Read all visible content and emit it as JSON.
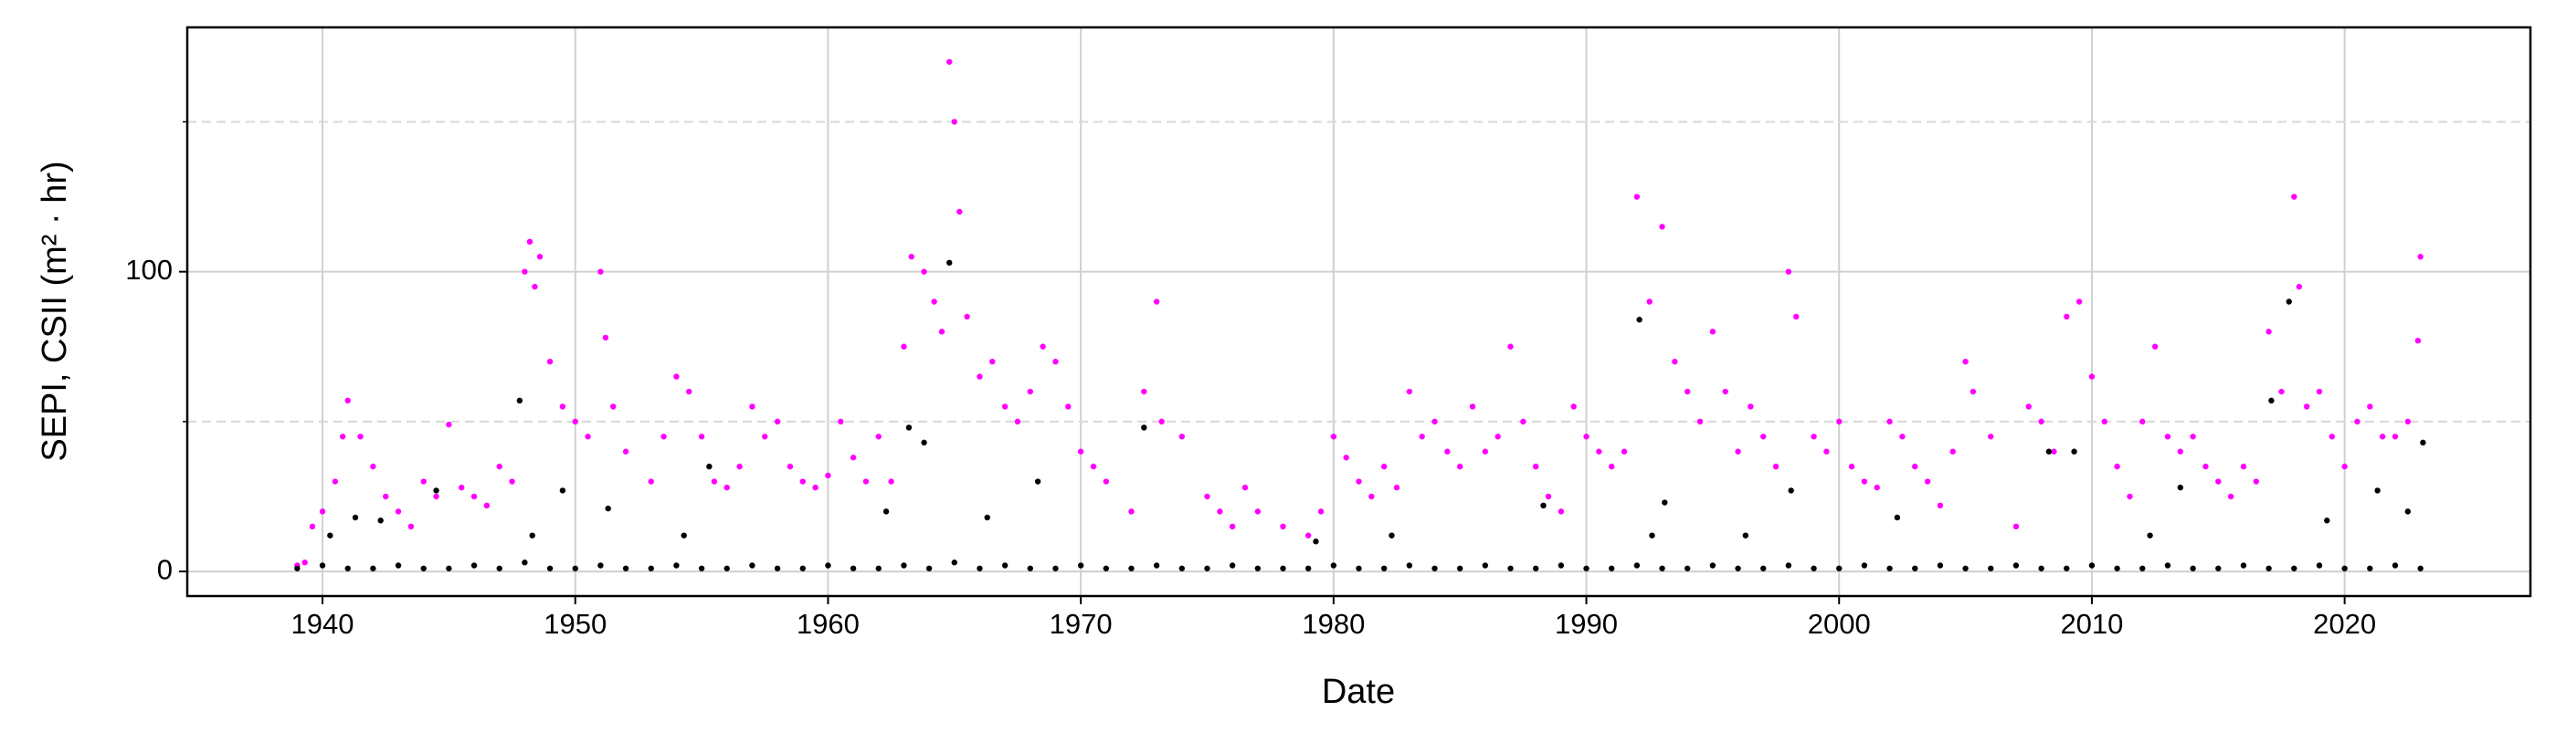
{
  "chart_data": {
    "type": "scatter",
    "x_label": "Date",
    "y_label": "SEPI, CSII (m² · hr)",
    "xlim": [
      1934.65,
      2027.35
    ],
    "ylim": [
      -8.2,
      181.5
    ],
    "xticks": [
      1940,
      1950,
      1960,
      1970,
      1980,
      1990,
      2000,
      2010,
      2020
    ],
    "yticks": [
      0,
      100
    ],
    "minor_yticks": [
      50,
      150
    ],
    "grid": true,
    "series": [
      {
        "color": "#ff00ff",
        "x": [
          1939,
          1939.3,
          1939.6,
          1940,
          1940.5,
          1940.8,
          1941,
          1941.5,
          1942,
          1942.5,
          1943,
          1943.5,
          1944,
          1944.5,
          1945,
          1945.5,
          1946,
          1946.5,
          1947,
          1947.5,
          1948,
          1948.2,
          1948.4,
          1948.6,
          1949,
          1949.5,
          1950,
          1950.5,
          1951,
          1951.2,
          1951.5,
          1952,
          1953,
          1953.5,
          1954,
          1954.5,
          1955,
          1955.5,
          1956,
          1956.5,
          1957,
          1957.5,
          1958,
          1958.5,
          1959,
          1959.5,
          1960,
          1960.5,
          1961,
          1961.5,
          1962,
          1962.5,
          1963,
          1963.3,
          1963.8,
          1964.2,
          1964.5,
          1964.8,
          1965,
          1965.2,
          1965.5,
          1966,
          1966.5,
          1967,
          1967.5,
          1968,
          1968.5,
          1969,
          1969.5,
          1970,
          1970.5,
          1971,
          1972,
          1972.5,
          1973,
          1973.2,
          1974,
          1975,
          1975.5,
          1976,
          1976.5,
          1977,
          1978,
          1979,
          1979.5,
          1980,
          1980.5,
          1981,
          1981.5,
          1982,
          1982.5,
          1983,
          1983.5,
          1984,
          1984.5,
          1985,
          1985.5,
          1986,
          1986.5,
          1987,
          1987.5,
          1988,
          1988.5,
          1989,
          1989.5,
          1990,
          1990.5,
          1991,
          1991.5,
          1992,
          1992.5,
          1993,
          1993.5,
          1994,
          1994.5,
          1995,
          1995.5,
          1996,
          1996.5,
          1997,
          1997.5,
          1998,
          1998.3,
          1999,
          1999.5,
          2000,
          2000.5,
          2001,
          2001.5,
          2002,
          2002.5,
          2003,
          2003.5,
          2004,
          2004.5,
          2005,
          2005.3,
          2006,
          2007,
          2007.5,
          2008,
          2008.5,
          2009,
          2009.5,
          2010,
          2010.5,
          2011,
          2011.5,
          2012,
          2012.5,
          2013,
          2013.5,
          2014,
          2014.5,
          2015,
          2015.5,
          2016,
          2016.5,
          2017,
          2017.5,
          2018,
          2018.2,
          2018.5,
          2019,
          2019.5,
          2020,
          2020.5,
          2021,
          2021.5,
          2022,
          2022.5,
          2022.9,
          2023
        ],
        "values": [
          2,
          3,
          15,
          20,
          30,
          45,
          57,
          45,
          35,
          25,
          20,
          15,
          30,
          25,
          49,
          28,
          25,
          22,
          35,
          30,
          100,
          110,
          95,
          105,
          70,
          55,
          50,
          45,
          100,
          78,
          55,
          40,
          30,
          45,
          65,
          60,
          45,
          30,
          28,
          35,
          55,
          45,
          50,
          35,
          30,
          28,
          32,
          50,
          38,
          30,
          45,
          30,
          75,
          105,
          100,
          90,
          80,
          170,
          150,
          120,
          85,
          65,
          70,
          55,
          50,
          60,
          75,
          70,
          55,
          40,
          35,
          30,
          20,
          60,
          90,
          50,
          45,
          25,
          20,
          15,
          28,
          20,
          15,
          12,
          20,
          45,
          38,
          30,
          25,
          35,
          28,
          60,
          45,
          50,
          40,
          35,
          55,
          40,
          45,
          75,
          50,
          35,
          25,
          20,
          55,
          45,
          40,
          35,
          40,
          125,
          90,
          115,
          70,
          60,
          50,
          80,
          60,
          40,
          55,
          45,
          35,
          100,
          85,
          45,
          40,
          50,
          35,
          30,
          28,
          50,
          45,
          35,
          30,
          22,
          40,
          70,
          60,
          45,
          15,
          55,
          50,
          40,
          85,
          90,
          65,
          50,
          35,
          25,
          50,
          75,
          45,
          40,
          45,
          35,
          30,
          25,
          35,
          30,
          80,
          60,
          125,
          95,
          55,
          60,
          45,
          35,
          50,
          55,
          45,
          45,
          50,
          77,
          105
        ]
      },
      {
        "color": "#000000",
        "x": [
          1939,
          1940,
          1941,
          1942,
          1943,
          1944,
          1945,
          1946,
          1947,
          1948,
          1949,
          1950,
          1951,
          1952,
          1953,
          1954,
          1955,
          1956,
          1957,
          1958,
          1959,
          1960,
          1961,
          1962,
          1963,
          1964,
          1965,
          1966,
          1967,
          1968,
          1969,
          1970,
          1971,
          1972,
          1973,
          1974,
          1975,
          1976,
          1977,
          1978,
          1979,
          1980,
          1981,
          1982,
          1983,
          1984,
          1985,
          1986,
          1987,
          1988,
          1989,
          1990,
          1991,
          1992,
          1993,
          1994,
          1995,
          1996,
          1997,
          1998,
          1999,
          2000,
          2001,
          2002,
          2003,
          2004,
          2005,
          2006,
          2007,
          2008,
          2009,
          2010,
          2011,
          2012,
          2013,
          2014,
          2015,
          2016,
          2017,
          2018,
          2019,
          2020,
          2021,
          2022,
          2023,
          1940.3,
          1941.3,
          1942.3,
          1944.5,
          1947.8,
          1948.3,
          1949.5,
          1951.3,
          1954.3,
          1955.3,
          1962.3,
          1963.2,
          1963.8,
          1964.8,
          1966.3,
          1968.3,
          1972.5,
          1979.3,
          1982.3,
          1988.3,
          1992.1,
          1992.6,
          1993.1,
          1996.3,
          1998.1,
          2002.3,
          2008.3,
          2009.3,
          2012.3,
          2013.5,
          2017.1,
          2017.8,
          2019.3,
          2021.3,
          2022.5,
          2023.1
        ],
        "values": [
          1,
          2,
          1,
          1,
          2,
          1,
          1,
          2,
          1,
          3,
          1,
          1,
          2,
          1,
          1,
          2,
          1,
          1,
          2,
          1,
          1,
          2,
          1,
          1,
          2,
          1,
          3,
          1,
          2,
          1,
          1,
          2,
          1,
          1,
          2,
          1,
          1,
          2,
          1,
          1,
          1,
          2,
          1,
          1,
          2,
          1,
          1,
          2,
          1,
          1,
          2,
          1,
          1,
          2,
          1,
          1,
          2,
          1,
          1,
          2,
          1,
          1,
          2,
          1,
          1,
          2,
          1,
          1,
          2,
          1,
          1,
          2,
          1,
          1,
          2,
          1,
          1,
          2,
          1,
          1,
          2,
          1,
          1,
          2,
          1,
          12,
          18,
          17,
          27,
          57,
          12,
          27,
          21,
          12,
          35,
          20,
          48,
          43,
          103,
          18,
          30,
          48,
          10,
          12,
          22,
          84,
          12,
          23,
          12,
          27,
          18,
          40,
          40,
          12,
          28,
          57,
          90,
          17,
          27,
          20,
          43
        ]
      }
    ]
  }
}
